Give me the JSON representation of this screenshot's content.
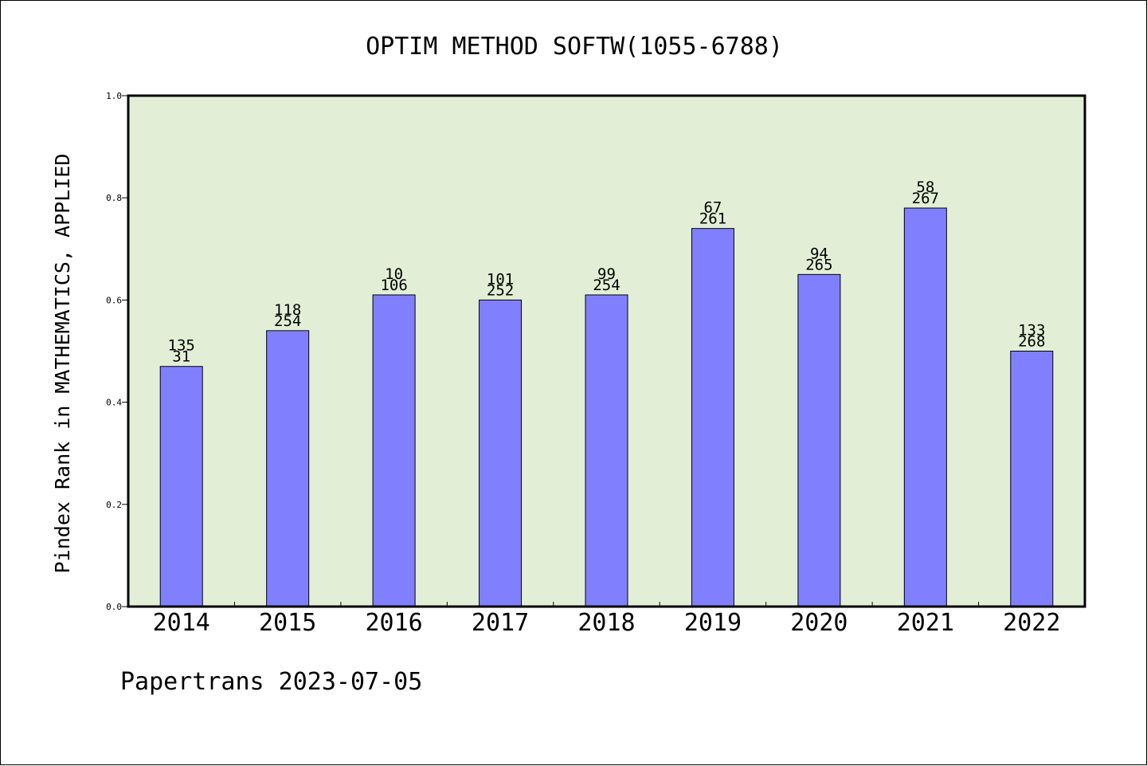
{
  "chart_data": {
    "type": "bar",
    "title": "OPTIM METHOD SOFTW(1055-6788)",
    "ylabel": "Pindex Rank in MATHEMATICS, APPLIED",
    "xlabel": "",
    "categories": [
      "2014",
      "2015",
      "2016",
      "2017",
      "2018",
      "2019",
      "2020",
      "2021",
      "2022"
    ],
    "values": [
      0.47,
      0.54,
      0.61,
      0.6,
      0.61,
      0.74,
      0.65,
      0.78,
      0.5
    ],
    "label_top": [
      "135",
      "118",
      "10",
      "101",
      "99",
      "67",
      "94",
      "58",
      "133"
    ],
    "label_bottom": [
      "31",
      "254",
      "106",
      "252",
      "254",
      "261",
      "265",
      "267",
      "268"
    ],
    "ylim": [
      0,
      1.0
    ],
    "yticks": [
      "0.0",
      "0.2",
      "0.4",
      "0.6",
      "0.8",
      "1.0"
    ],
    "grid": false,
    "colors": {
      "bar": "#8080ff",
      "plot_bg": "#e2efd6",
      "text": "#000000"
    }
  },
  "footer": {
    "text": "Papertrans 2023-07-05"
  }
}
